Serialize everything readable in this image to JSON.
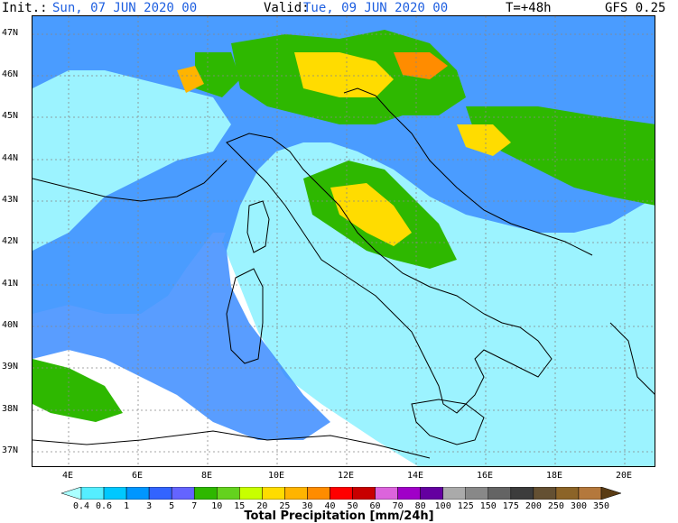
{
  "header": {
    "init_label": "Init.:",
    "init_value": "Sun, 07 JUN 2020  00",
    "valid_label": "Valid:",
    "valid_value": "Tue, 09 JUN 2020  00",
    "forecast_hour": "T=+48h",
    "model": "GFS 0.25"
  },
  "map": {
    "lat_labels": [
      "47N",
      "46N",
      "45N",
      "44N",
      "43N",
      "42N",
      "41N",
      "40N",
      "39N",
      "38N",
      "37N"
    ],
    "lon_labels": [
      "4E",
      "6E",
      "8E",
      "10E",
      "12E",
      "14E",
      "16E",
      "18E",
      "20E"
    ]
  },
  "legend": {
    "levels": [
      "0.4",
      "0.6",
      "1",
      "3",
      "5",
      "7",
      "10",
      "15",
      "20",
      "25",
      "30",
      "40",
      "50",
      "60",
      "70",
      "80",
      "100",
      "125",
      "150",
      "175",
      "200",
      "250",
      "300",
      "350"
    ],
    "colors": [
      "#aaffff",
      "#55eeff",
      "#00c8ff",
      "#0096ff",
      "#3264ff",
      "#6464ff",
      "#2eb800",
      "#64d21e",
      "#c8ff00",
      "#ffdc00",
      "#ffb400",
      "#ff8c00",
      "#ff0000",
      "#c80000",
      "#dc64dc",
      "#a000c8",
      "#6400a0",
      "#aaaaaa",
      "#888888",
      "#646464",
      "#3c3c3c",
      "#645032",
      "#8c6428",
      "#b4783c",
      "#5a3c14"
    ],
    "title": "Total Precipitation [mm/24h]"
  }
}
